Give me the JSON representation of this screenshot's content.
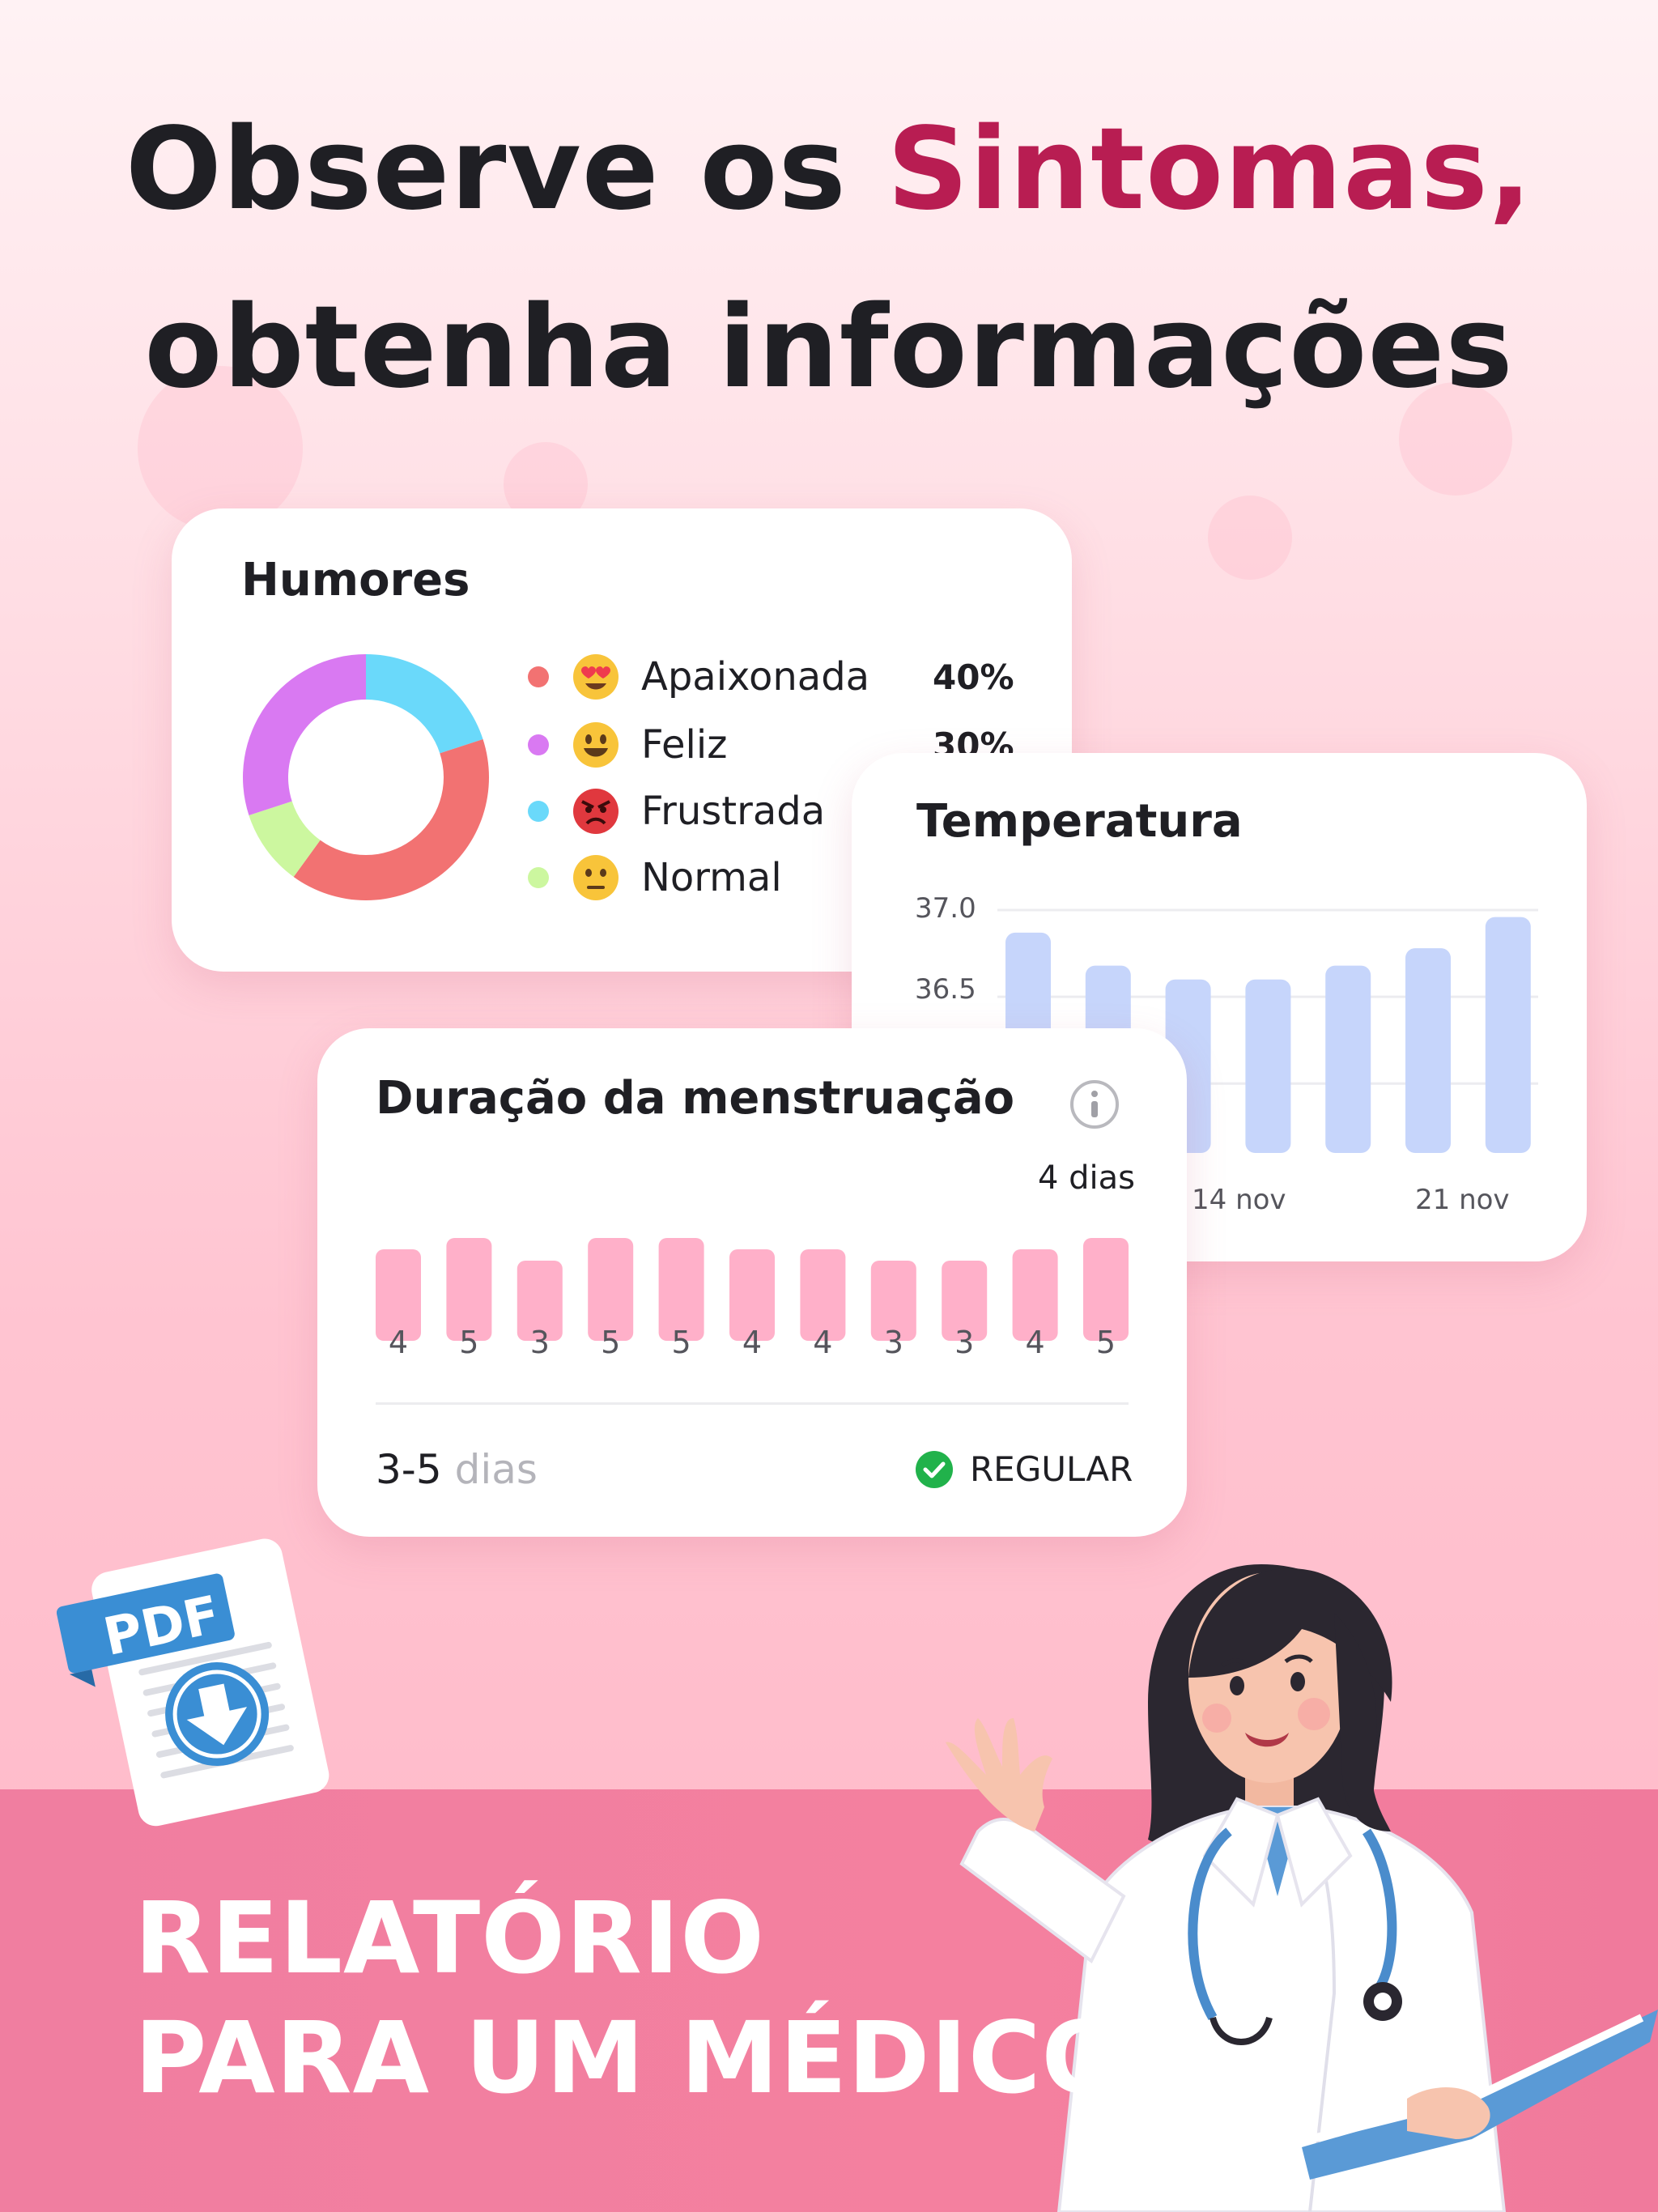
{
  "headline": {
    "line1_pre": "Observe os ",
    "line1_accent": "Sintomas,",
    "line2": "obtenha informações"
  },
  "moods_card": {
    "title": "Humores",
    "items": [
      {
        "label": "Apaixonada",
        "percent": "40%",
        "dot_color": "#f27272",
        "emoji": "heart-eyes-emoji"
      },
      {
        "label": "Feliz",
        "percent": "30%",
        "dot_color": "#d979f2",
        "emoji": "smiling-emoji"
      },
      {
        "label": "Frustrada",
        "percent": "",
        "dot_color": "#6ad9fa",
        "emoji": "angry-emoji"
      },
      {
        "label": "Normal",
        "percent": "",
        "dot_color": "#ccf79f",
        "emoji": "neutral-emoji"
      }
    ]
  },
  "chart_data": [
    {
      "type": "pie",
      "title": "Humores",
      "categories": [
        "Apaixonada",
        "Feliz",
        "Frustrada",
        "Normal"
      ],
      "values": [
        40,
        30,
        20,
        10
      ]
    },
    {
      "type": "bar",
      "title": "Temperatura",
      "yticks": [
        "37.0",
        "36.5"
      ],
      "xticks": [
        "14 nov",
        "21 nov"
      ],
      "values": [
        36.87,
        36.68,
        36.6,
        36.6,
        36.68,
        36.78,
        36.96
      ],
      "ylim": [
        35.6,
        37.0
      ]
    },
    {
      "type": "bar",
      "title": "Duração da menstruação",
      "categories": [
        "4",
        "5",
        "3",
        "5",
        "5",
        "4",
        "4",
        "3",
        "3",
        "4",
        "5"
      ],
      "values": [
        4,
        5,
        3,
        5,
        5,
        4,
        4,
        3,
        3,
        4,
        5
      ]
    }
  ],
  "temperature_card": {
    "title": "Temperatura"
  },
  "duration_card": {
    "title": "Duração da menstruação",
    "latest_label": "4 dias",
    "range_value": "3-5",
    "range_unit": "dias",
    "status": "REGULAR"
  },
  "pdf_badge": "PDF",
  "bottom": {
    "line1": "RELATÓRIO",
    "line2": "PARA UM MÉDICO"
  },
  "colors": {
    "accent": "#b81d52",
    "temp_bar": "#c6d5fb",
    "duration_bar": "#ffb0c9",
    "status_ok": "#21b24b",
    "band": "#f4809f"
  }
}
